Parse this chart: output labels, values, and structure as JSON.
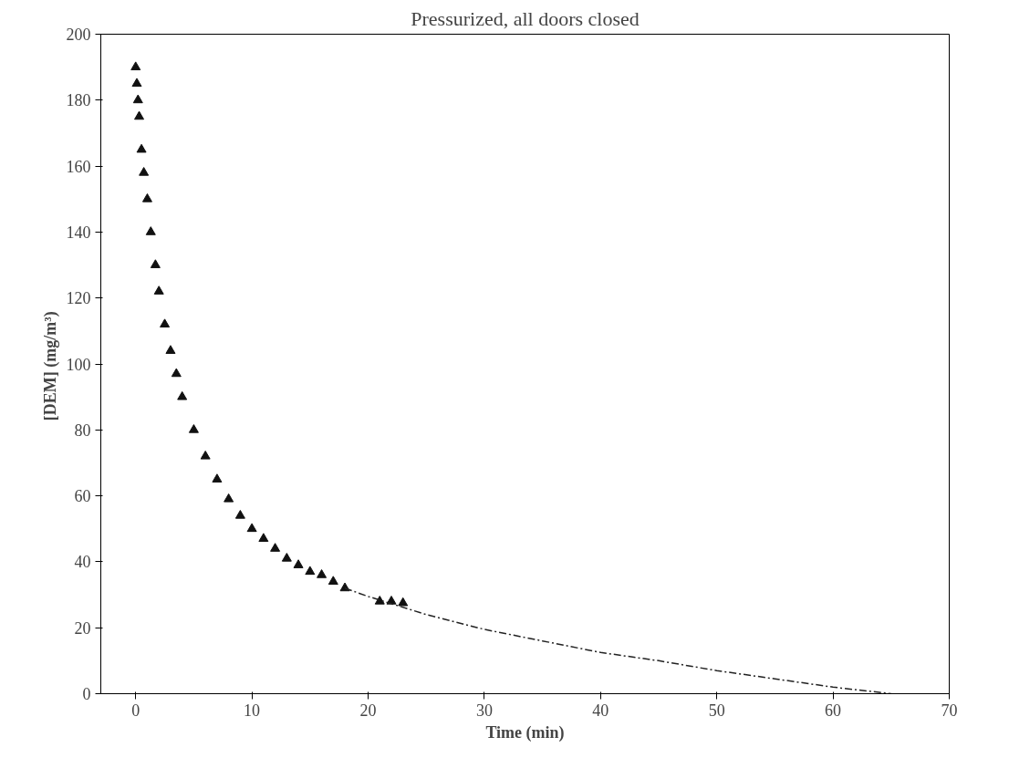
{
  "chart_data": {
    "type": "scatter",
    "title": "Pressurized, all doors closed",
    "xlabel": "Time (min)",
    "ylabel": "[DEM]  (mg/m³)",
    "xlim": [
      -3,
      70
    ],
    "ylim": [
      0,
      200
    ],
    "xticks": [
      0,
      10,
      20,
      30,
      40,
      50,
      60,
      70
    ],
    "yticks": [
      0,
      20,
      40,
      60,
      80,
      100,
      120,
      140,
      160,
      180,
      200
    ],
    "grid": false,
    "series": [
      {
        "marker": "triangle",
        "color": "#111111",
        "x": [
          0,
          0.1,
          0.2,
          0.3,
          0.5,
          0.7,
          1,
          1.3,
          1.7,
          2,
          2.5,
          3,
          3.5,
          4,
          5,
          6,
          7,
          8,
          9,
          10,
          11,
          12,
          13,
          14,
          15,
          16,
          17,
          18,
          21,
          22,
          23
        ],
        "values": [
          190,
          185,
          180,
          175,
          165,
          158,
          150,
          140,
          130,
          122,
          112,
          104,
          97,
          90,
          80,
          72,
          65,
          59,
          54,
          50,
          47,
          44,
          41,
          39,
          37,
          36,
          34,
          32,
          28,
          28,
          27.5
        ]
      },
      {
        "type": "line",
        "marker": "none",
        "line_style": "dashed",
        "color": "#222222",
        "x": [
          18,
          20,
          25,
          30,
          35,
          40,
          45,
          50,
          55,
          60,
          65
        ],
        "values": [
          32,
          29.5,
          24,
          19.5,
          16,
          12.5,
          10,
          7,
          4.5,
          2,
          0
        ]
      }
    ]
  }
}
